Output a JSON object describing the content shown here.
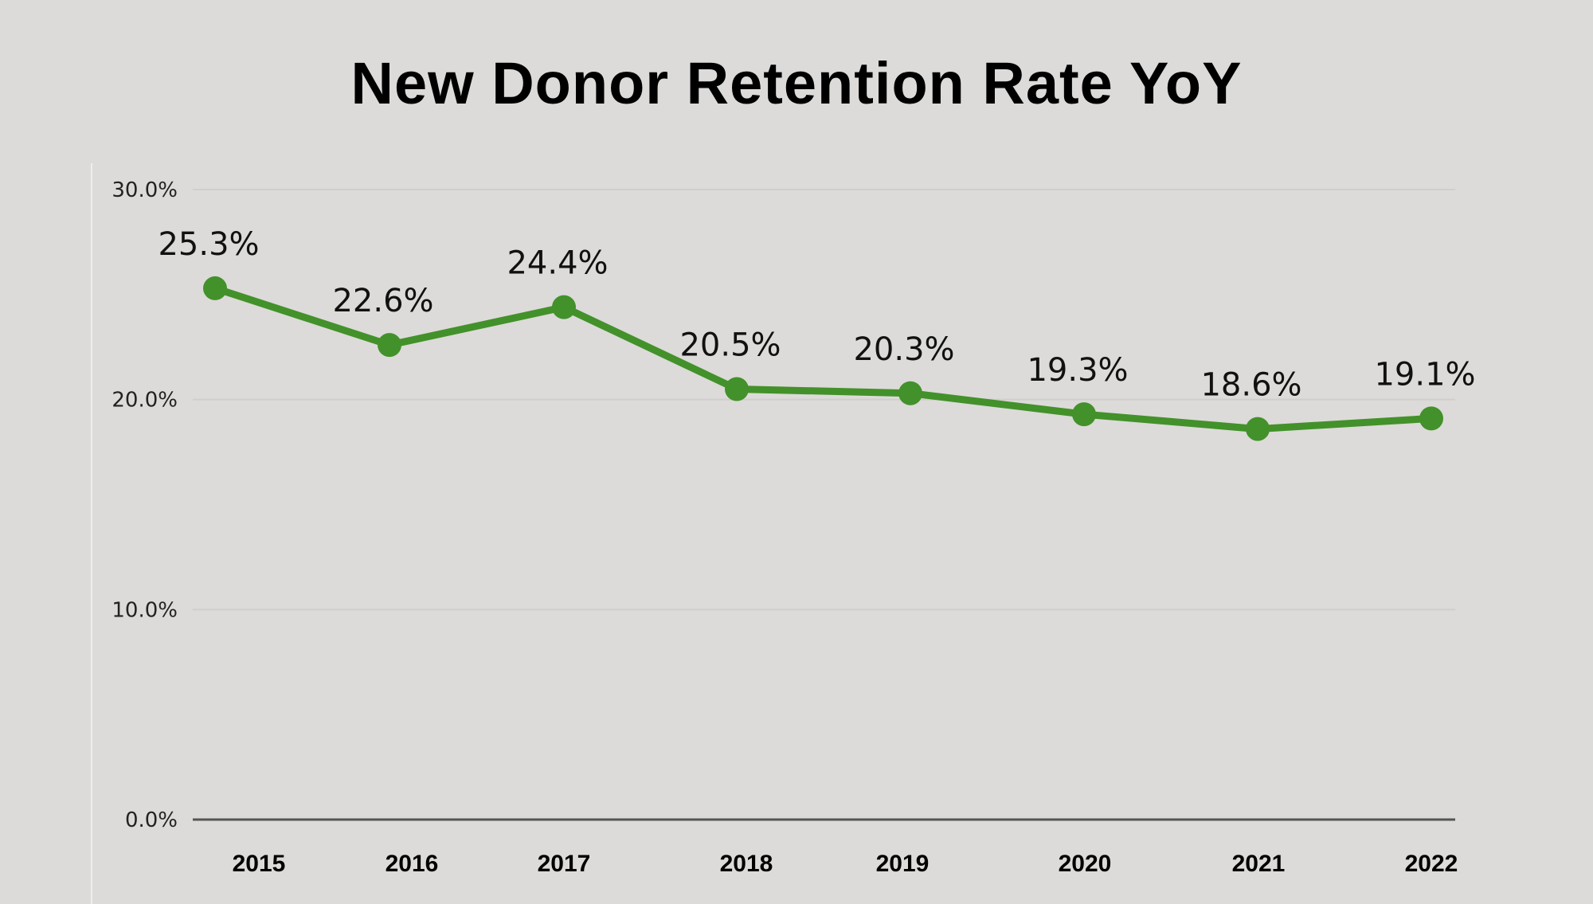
{
  "chart_data": {
    "type": "line",
    "title": "New Donor Retention Rate YoY",
    "categories": [
      "2015",
      "2016",
      "2017",
      "2018",
      "2019",
      "2020",
      "2021",
      "2022"
    ],
    "values": [
      25.3,
      22.6,
      24.4,
      20.5,
      20.3,
      19.3,
      18.6,
      19.1
    ],
    "data_labels": [
      "25.3%",
      "22.6%",
      "24.4%",
      "20.5%",
      "20.3%",
      "19.3%",
      "18.6%",
      "19.1%"
    ],
    "yticks": [
      0,
      10,
      20,
      30
    ],
    "ytick_labels": [
      "0.0%",
      "10.0%",
      "20.0%",
      "30.0%"
    ],
    "ylim": [
      0,
      30
    ],
    "grid": true,
    "legend": "none",
    "colors": {
      "line": "#43912a",
      "background": "#dcdbd9",
      "grid": "#cfcecc",
      "axis": "#555555"
    }
  }
}
